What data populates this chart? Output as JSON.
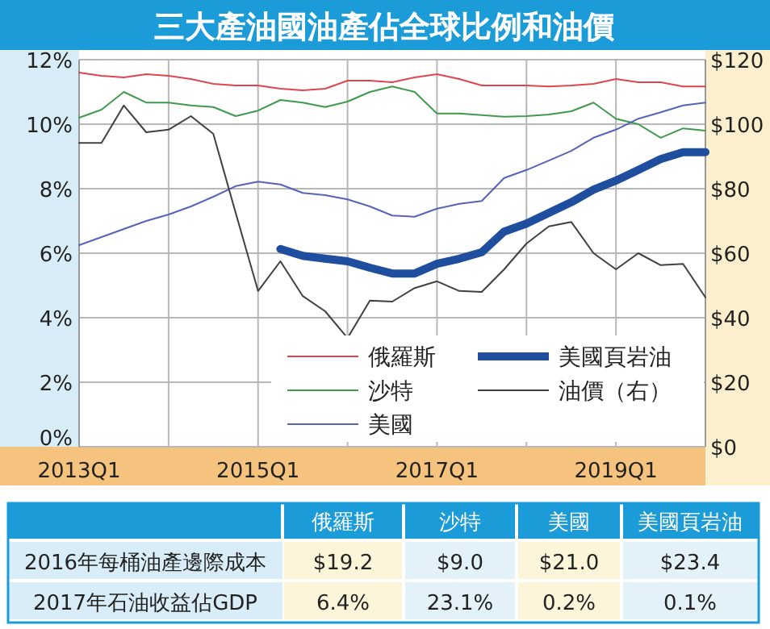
{
  "chart_data": [
    {
      "type": "line",
      "title": "三大產油國油產佔全球比例和油價",
      "categories": [
        "2013Q1",
        null,
        null,
        null,
        null,
        null,
        null,
        null,
        "2015Q1",
        null,
        null,
        null,
        null,
        null,
        null,
        null,
        "2017Q1",
        null,
        null,
        null,
        null,
        null,
        null,
        null,
        "2019Q1",
        null,
        null,
        null,
        null
      ],
      "ylim": [
        0,
        12
      ],
      "yticks": [
        {
          "value": 0,
          "label": "0%"
        },
        {
          "value": 2,
          "label": "2%"
        },
        {
          "value": 4,
          "label": "4%"
        },
        {
          "value": 6,
          "label": "6%"
        },
        {
          "value": 8,
          "label": "8%"
        },
        {
          "value": 10,
          "label": "10%"
        },
        {
          "value": 12,
          "label": "12%"
        }
      ],
      "y2lim": [
        0,
        120
      ],
      "y2ticks": [
        {
          "value": 0,
          "label": "$0"
        },
        {
          "value": 20,
          "label": "$20"
        },
        {
          "value": 40,
          "label": "$40"
        },
        {
          "value": 60,
          "label": "$60"
        },
        {
          "value": 80,
          "label": "$80"
        },
        {
          "value": 100,
          "label": "$100"
        },
        {
          "value": 120,
          "label": "$120"
        }
      ],
      "grid": true,
      "legend": "bottom right",
      "series": [
        {
          "name": "俄羅斯",
          "color": "#e0454f",
          "values": [
            11.6,
            11.5,
            11.45,
            11.55,
            11.5,
            11.4,
            11.25,
            11.2,
            11.2,
            11.1,
            11.05,
            11.1,
            11.35,
            11.35,
            11.3,
            11.45,
            11.55,
            11.4,
            11.2,
            11.2,
            11.2,
            11.17,
            11.2,
            11.25,
            11.4,
            11.3,
            11.3,
            11.17,
            11.17
          ]
        },
        {
          "name": "沙特",
          "color": "#3f9a4c",
          "values": [
            10.2,
            10.45,
            11.0,
            10.67,
            10.67,
            10.58,
            10.53,
            10.25,
            10.42,
            10.75,
            10.67,
            10.53,
            10.7,
            11.0,
            11.17,
            11.0,
            10.33,
            10.33,
            10.28,
            10.23,
            10.25,
            10.3,
            10.4,
            10.67,
            10.17,
            10.0,
            9.58,
            9.87,
            9.8
          ]
        },
        {
          "name": "美國",
          "color": "#5563b8",
          "values": [
            6.25,
            6.5,
            6.75,
            7.0,
            7.2,
            7.45,
            7.75,
            8.08,
            8.22,
            8.13,
            7.87,
            7.8,
            7.67,
            7.45,
            7.17,
            7.13,
            7.38,
            7.53,
            7.62,
            8.33,
            8.58,
            8.87,
            9.17,
            9.58,
            9.83,
            10.17,
            10.37,
            10.58,
            10.67
          ]
        },
        {
          "name": "美國頁岩油",
          "color": "#1f4e9e",
          "values": [
            null,
            null,
            null,
            null,
            null,
            null,
            null,
            null,
            null,
            6.13,
            5.92,
            5.83,
            5.75,
            5.55,
            5.37,
            5.37,
            5.67,
            5.83,
            6.03,
            6.67,
            6.92,
            7.25,
            7.58,
            7.97,
            8.25,
            8.58,
            8.92,
            9.13,
            9.13
          ]
        },
        {
          "name": "油價（右）",
          "color": "#404040",
          "axis": "y2",
          "values": [
            94.2,
            94.2,
            105.8,
            97.5,
            98.3,
            102.5,
            97,
            72.5,
            48.3,
            57.5,
            46.7,
            42,
            33.7,
            45.3,
            45,
            49.2,
            51.3,
            48.3,
            48,
            55,
            63,
            68.3,
            69.7,
            60,
            55,
            60,
            56.3,
            56.7,
            46.3
          ]
        }
      ]
    },
    {
      "type": "other",
      "categories": [
        "俄羅斯",
        "沙特",
        "美國",
        "美國頁岩油"
      ],
      "y_categories": [
        "2016年每桶油產邊際成本",
        "2017年石油收益佔GDP"
      ],
      "cell_labels": [
        [
          "$19.2",
          "$9.0",
          "$21.0",
          "$23.4"
        ],
        [
          "6.4%",
          "23.1%",
          "0.2%",
          "0.1%"
        ]
      ]
    }
  ]
}
